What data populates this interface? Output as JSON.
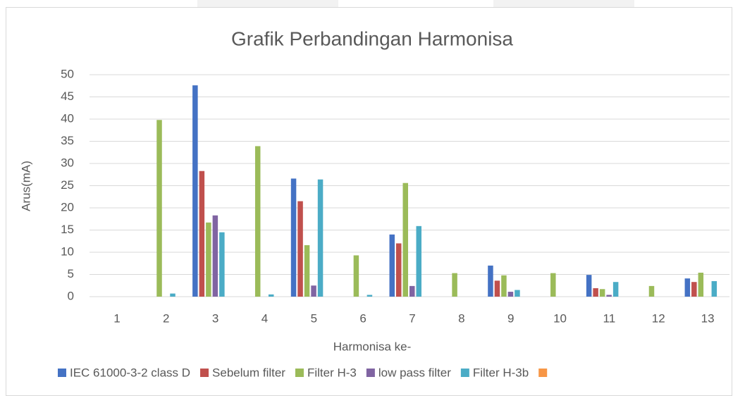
{
  "chart_data": {
    "type": "bar",
    "title": "Grafik Perbandingan Harmonisa",
    "xlabel": "Harmonisa ke-",
    "ylabel": "Arus(mA)",
    "categories": [
      "1",
      "2",
      "3",
      "4",
      "5",
      "6",
      "7",
      "8",
      "9",
      "10",
      "11",
      "12",
      "13"
    ],
    "series": [
      {
        "name": "IEC 61000-3-2 class D",
        "color": "#4472c4",
        "values": [
          null,
          null,
          47.6,
          null,
          26.6,
          null,
          14.0,
          null,
          7.0,
          null,
          4.9,
          null,
          4.1
        ]
      },
      {
        "name": "Sebelum filter",
        "color": "#c0504d",
        "values": [
          null,
          null,
          28.3,
          null,
          21.5,
          null,
          12.0,
          null,
          3.6,
          null,
          1.9,
          null,
          3.3
        ]
      },
      {
        "name": "Filter H-3",
        "color": "#9bbb59",
        "values": [
          null,
          39.8,
          16.7,
          33.9,
          11.6,
          9.3,
          25.6,
          5.3,
          4.8,
          5.3,
          1.7,
          2.4,
          5.4
        ]
      },
      {
        "name": "low pass filter",
        "color": "#8064a2",
        "values": [
          null,
          null,
          18.3,
          null,
          2.5,
          null,
          2.4,
          null,
          1.1,
          null,
          0.4,
          null,
          null
        ]
      },
      {
        "name": "Filter H-3b",
        "color": "#4bacc6",
        "values": [
          null,
          0.7,
          14.5,
          0.5,
          26.4,
          0.4,
          15.9,
          null,
          1.5,
          null,
          3.3,
          null,
          3.5
        ]
      },
      {
        "name": null,
        "color": "#f79646",
        "values": [
          null,
          null,
          null,
          null,
          null,
          null,
          null,
          null,
          null,
          null,
          null,
          null,
          null
        ]
      }
    ],
    "ylim": [
      0,
      50
    ],
    "yticks": [
      0,
      5,
      10,
      15,
      20,
      25,
      30,
      35,
      40,
      45,
      50
    ],
    "grid": true,
    "legend": "bottom"
  }
}
